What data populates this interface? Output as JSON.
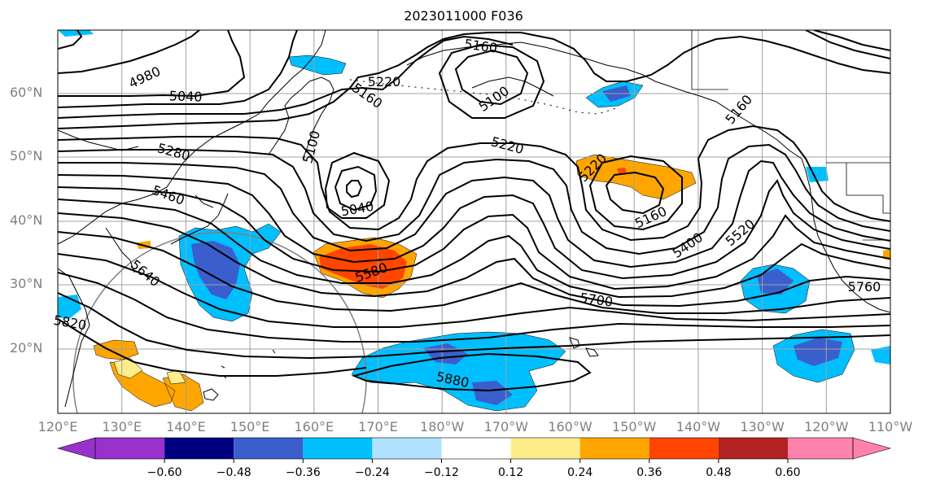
{
  "title": "2023011000 F036",
  "lat_ticks": [
    "60°N",
    "50°N",
    "40°N",
    "30°N",
    "20°N"
  ],
  "lon_ticks": [
    "120°E",
    "130°E",
    "140°E",
    "150°E",
    "160°E",
    "170°E",
    "180°W",
    "170°W",
    "160°W",
    "150°W",
    "140°W",
    "130°W",
    "120°W",
    "110°W"
  ],
  "colorbar": {
    "ticks": [
      "−0.60",
      "−0.48",
      "−0.36",
      "−0.24",
      "−0.12",
      "0.12",
      "0.24",
      "0.36",
      "0.48",
      "0.60"
    ],
    "colors": [
      "#9932cc",
      "#000080",
      "#3a5fcd",
      "#00bfff",
      "#b0e2ff",
      "#ffffff",
      "#ffec8b",
      "#ffa500",
      "#ff4500",
      "#b22222",
      "#ff82ab"
    ]
  },
  "contour_labels": [
    "4980",
    "5040",
    "5160",
    "5220",
    "5100",
    "5280",
    "5460",
    "5100",
    "5040",
    "5640",
    "5580",
    "5220",
    "5160",
    "5400",
    "5520",
    "5700",
    "5760",
    "5880",
    "5220",
    "5160",
    "5160",
    "5820"
  ],
  "colors": {
    "contour": "#000000",
    "grid": "#a0a0a0",
    "coast": "#000000"
  }
}
